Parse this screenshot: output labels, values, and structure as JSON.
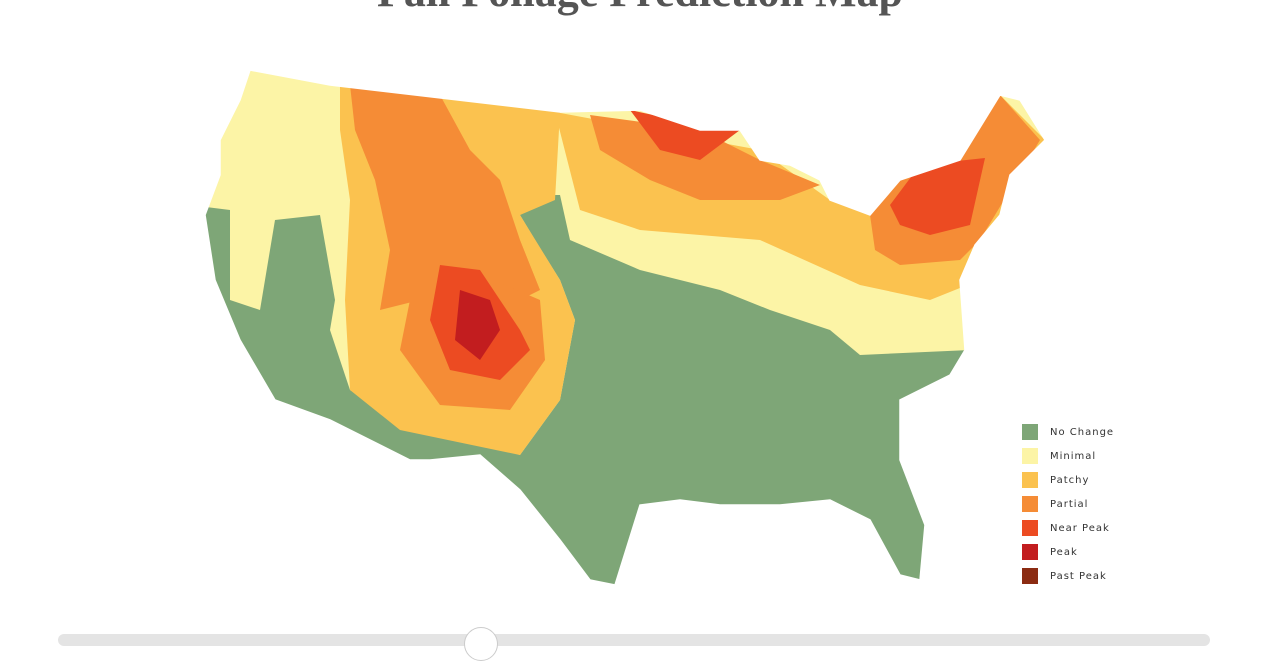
{
  "header": {
    "title": "Fall Foliage Prediction Map"
  },
  "legend": [
    {
      "label": "No Change",
      "color": "#7ea677"
    },
    {
      "label": "Minimal",
      "color": "#fcf4a6"
    },
    {
      "label": "Patchy",
      "color": "#fbc24f"
    },
    {
      "label": "Partial",
      "color": "#f58c36"
    },
    {
      "label": "Near Peak",
      "color": "#ec4b22"
    },
    {
      "label": "Peak",
      "color": "#c21d1f"
    },
    {
      "label": "Past Peak",
      "color": "#8b2b12"
    }
  ]
}
